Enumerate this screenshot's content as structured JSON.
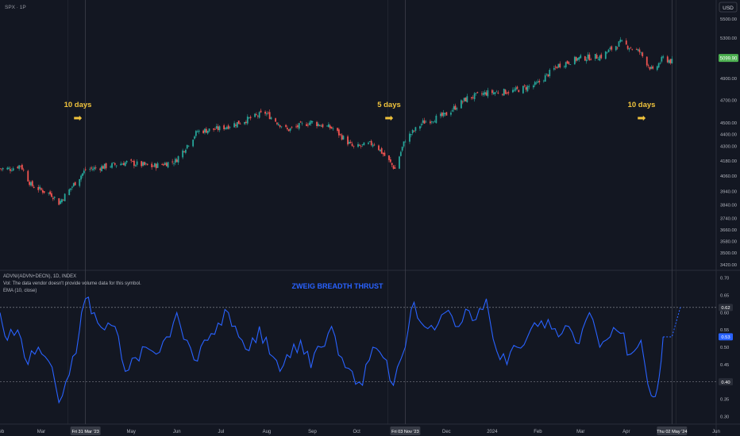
{
  "header": {
    "symbol_label": "SPX · 1P",
    "currency_button": "USD"
  },
  "indicator_legend": {
    "line1": "ADVN/(ADVN+DECN), 1D, INDEX",
    "line2": "Vol: The data vendor doesn't provide volume data for this symbol.",
    "line3": "EMA (10, close)"
  },
  "chart_data": [
    {
      "type": "candlestick",
      "title": "",
      "price_axis_ticks": [
        "5500.00",
        "5300.00",
        "5099.90",
        "4900.00",
        "4700.00",
        "4500.00",
        "4400.00",
        "4300.00",
        "4180.00",
        "4060.00",
        "3940.00",
        "3840.00",
        "3740.00",
        "3660.00",
        "3580.00",
        "3500.00",
        "3420.00"
      ],
      "last_price": "5099.90",
      "y_scale": "log",
      "ylim": [
        3400,
        5600
      ],
      "date_range": [
        "2023-02-01",
        "2024-06-01"
      ],
      "approx_close_path": [
        [
          "2023-02-01",
          4119
        ],
        [
          "2023-02-08",
          4117
        ],
        [
          "2023-02-15",
          4147
        ],
        [
          "2023-02-22",
          3991
        ],
        [
          "2023-03-01",
          3951
        ],
        [
          "2023-03-08",
          3918
        ],
        [
          "2023-03-13",
          3855
        ],
        [
          "2023-03-20",
          3951
        ],
        [
          "2023-03-31",
          4109
        ],
        [
          "2023-04-14",
          4137
        ],
        [
          "2023-04-28",
          4169
        ],
        [
          "2023-05-15",
          4136
        ],
        [
          "2023-05-31",
          4179
        ],
        [
          "2023-06-15",
          4425
        ],
        [
          "2023-06-30",
          4450
        ],
        [
          "2023-07-14",
          4505
        ],
        [
          "2023-07-31",
          4588
        ],
        [
          "2023-08-15",
          4437
        ],
        [
          "2023-08-31",
          4507
        ],
        [
          "2023-09-15",
          4450
        ],
        [
          "2023-09-29",
          4288
        ],
        [
          "2023-10-13",
          4327
        ],
        [
          "2023-10-27",
          4117
        ],
        [
          "2023-11-03",
          4358
        ],
        [
          "2023-11-15",
          4502
        ],
        [
          "2023-11-30",
          4567
        ],
        [
          "2023-12-15",
          4719
        ],
        [
          "2023-12-29",
          4769
        ],
        [
          "2024-01-15",
          4783
        ],
        [
          "2024-01-31",
          4845
        ],
        [
          "2024-02-15",
          5029
        ],
        [
          "2024-02-29",
          5096
        ],
        [
          "2024-03-15",
          5117
        ],
        [
          "2024-03-28",
          5254
        ],
        [
          "2024-04-10",
          5160
        ],
        [
          "2024-04-19",
          4967
        ],
        [
          "2024-04-26",
          5099
        ],
        [
          "2024-05-02",
          5064
        ]
      ]
    },
    {
      "type": "line",
      "title": "ZWEIG BREADTH THRUST",
      "series": [
        {
          "name": "EMA (10, close)"
        }
      ],
      "y_axis_ticks": [
        "0.70",
        "0.65",
        "0.60",
        "0.55",
        "0.50",
        "0.45",
        "0.40",
        "0.35",
        "0.30"
      ],
      "ylim": [
        0.28,
        0.72
      ],
      "threshold_lines": [
        0.615,
        0.4
      ],
      "value_badges": [
        {
          "label": "0.62",
          "value": 0.615,
          "color": "#2a2e39"
        },
        {
          "label": "0.53",
          "value": 0.53,
          "color": "#2962ff"
        },
        {
          "label": "0.40",
          "value": 0.4,
          "color": "#2a2e39"
        }
      ],
      "x_axis_ticks": [
        "Feb",
        "Mar",
        "May",
        "Jun",
        "Jul",
        "Aug",
        "Sep",
        "Oct",
        "Dec",
        "2024",
        "Feb",
        "Mar",
        "Apr",
        "Jun"
      ],
      "x_axis_tick_dates": [
        "2023-02-01",
        "2023-03-01",
        "2023-05-01",
        "2023-06-01",
        "2023-07-01",
        "2023-08-01",
        "2023-09-01",
        "2023-10-01",
        "2023-12-01",
        "2024-01-01",
        "2024-02-01",
        "2024-03-01",
        "2024-04-01",
        "2024-06-01"
      ],
      "highlighted_dates": [
        "Fri 31 Mar '23",
        "Fri 03 Nov '23",
        "Thu 02 May '24"
      ],
      "highlighted_date_values": [
        "2023-03-31",
        "2023-11-03",
        "2024-05-02"
      ],
      "approx_path": [
        [
          "2023-02-01",
          0.6
        ],
        [
          "2023-02-06",
          0.52
        ],
        [
          "2023-02-13",
          0.55
        ],
        [
          "2023-02-20",
          0.45
        ],
        [
          "2023-02-27",
          0.5
        ],
        [
          "2023-03-06",
          0.46
        ],
        [
          "2023-03-13",
          0.34
        ],
        [
          "2023-03-20",
          0.42
        ],
        [
          "2023-03-27",
          0.55
        ],
        [
          "2023-03-31",
          0.64
        ],
        [
          "2023-04-06",
          0.6
        ],
        [
          "2023-04-13",
          0.55
        ],
        [
          "2023-04-20",
          0.56
        ],
        [
          "2023-04-27",
          0.43
        ],
        [
          "2023-05-04",
          0.47
        ],
        [
          "2023-05-11",
          0.5
        ],
        [
          "2023-05-18",
          0.48
        ],
        [
          "2023-05-25",
          0.53
        ],
        [
          "2023-06-01",
          0.6
        ],
        [
          "2023-06-08",
          0.52
        ],
        [
          "2023-06-15",
          0.46
        ],
        [
          "2023-06-22",
          0.52
        ],
        [
          "2023-06-29",
          0.57
        ],
        [
          "2023-07-06",
          0.6
        ],
        [
          "2023-07-13",
          0.53
        ],
        [
          "2023-07-20",
          0.49
        ],
        [
          "2023-07-27",
          0.56
        ],
        [
          "2023-08-03",
          0.48
        ],
        [
          "2023-08-10",
          0.43
        ],
        [
          "2023-08-17",
          0.47
        ],
        [
          "2023-08-24",
          0.52
        ],
        [
          "2023-08-31",
          0.44
        ],
        [
          "2023-09-07",
          0.5
        ],
        [
          "2023-09-14",
          0.56
        ],
        [
          "2023-09-21",
          0.47
        ],
        [
          "2023-09-28",
          0.43
        ],
        [
          "2023-10-05",
          0.39
        ],
        [
          "2023-10-12",
          0.5
        ],
        [
          "2023-10-19",
          0.47
        ],
        [
          "2023-10-26",
          0.39
        ],
        [
          "2023-11-03",
          0.5
        ],
        [
          "2023-11-09",
          0.63
        ],
        [
          "2023-11-16",
          0.56
        ],
        [
          "2023-11-23",
          0.55
        ],
        [
          "2023-11-30",
          0.6
        ],
        [
          "2023-12-07",
          0.56
        ],
        [
          "2023-12-14",
          0.61
        ],
        [
          "2023-12-21",
          0.58
        ],
        [
          "2023-12-28",
          0.64
        ],
        [
          "2024-01-04",
          0.49
        ],
        [
          "2024-01-11",
          0.45
        ],
        [
          "2024-01-18",
          0.5
        ],
        [
          "2024-01-25",
          0.53
        ],
        [
          "2024-02-01",
          0.56
        ],
        [
          "2024-02-08",
          0.58
        ],
        [
          "2024-02-15",
          0.53
        ],
        [
          "2024-02-22",
          0.56
        ],
        [
          "2024-02-29",
          0.51
        ],
        [
          "2024-03-07",
          0.6
        ],
        [
          "2024-03-14",
          0.5
        ],
        [
          "2024-03-21",
          0.53
        ],
        [
          "2024-03-28",
          0.54
        ],
        [
          "2024-04-04",
          0.48
        ],
        [
          "2024-04-11",
          0.52
        ],
        [
          "2024-04-18",
          0.36
        ],
        [
          "2024-04-22",
          0.38
        ],
        [
          "2024-04-26",
          0.53
        ],
        [
          "2024-05-02",
          0.53
        ],
        [
          "2024-05-08",
          0.62
        ]
      ],
      "forecast_from_index": 67
    }
  ],
  "annotations": [
    {
      "label": "10 days",
      "arrow": "➡",
      "date": "2023-03-31",
      "color": "#f0c33c"
    },
    {
      "label": "5 days",
      "arrow": "➡",
      "date": "2023-11-03",
      "color": "#f0c33c"
    },
    {
      "label": "10 days",
      "arrow": "➡",
      "date": "2024-05-02",
      "color": "#f0c33c"
    }
  ],
  "colors": {
    "background": "#131722",
    "up_candle": "#26a69a",
    "down_candle": "#ef5350",
    "indicator_line": "#2962ff",
    "last_price_badge": "#4caf50",
    "annotation_text": "#f0c33c",
    "grid_separator": "#2a2e39"
  }
}
